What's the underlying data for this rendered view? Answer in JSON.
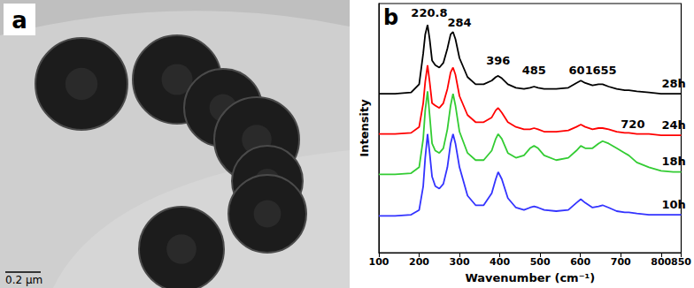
{
  "image_panel": {
    "label": "a",
    "scale_bar": "0.2 μm"
  },
  "chart_data": {
    "type": "line",
    "panel_label": "b",
    "xlabel": "Wavenumber (cm⁻¹)",
    "ylabel": "Intensity",
    "x": [
      100,
      140,
      180,
      200,
      210,
      215,
      220.8,
      226,
      232,
      240,
      250,
      260,
      270,
      278,
      284,
      290,
      300,
      320,
      340,
      360,
      380,
      390,
      396,
      405,
      420,
      440,
      460,
      475,
      485,
      495,
      510,
      540,
      570,
      590,
      601,
      612,
      630,
      645,
      655,
      670,
      690,
      710,
      720,
      740,
      770,
      800,
      830,
      850
    ],
    "series": [
      {
        "name": "28h",
        "color": "#000000",
        "values": [
          67,
          67,
          67.5,
          71,
          84,
          92,
          96,
          90,
          81,
          79,
          78,
          80,
          86,
          92,
          93,
          90,
          82,
          74,
          71,
          71,
          72.5,
          74,
          74.5,
          73.5,
          71,
          69.5,
          69,
          69.5,
          70,
          69.5,
          69,
          69,
          69.5,
          71.5,
          72.5,
          71.5,
          70.5,
          71,
          71,
          70,
          69,
          68.5,
          68.5,
          68,
          67.5,
          67,
          67,
          67
        ]
      },
      {
        "name": "24h",
        "color": "#ff0000",
        "values": [
          50,
          50,
          50.5,
          53,
          63,
          72,
          79,
          72,
          63,
          62,
          61,
          63,
          69,
          76,
          78,
          75,
          66,
          58,
          55,
          55,
          57,
          60,
          61,
          59,
          55,
          53,
          52,
          52,
          52.5,
          52,
          51,
          51,
          51.5,
          53,
          54,
          53,
          52,
          52.5,
          52.5,
          52,
          51,
          50.5,
          50.5,
          50,
          50,
          49.5,
          49.5,
          49.5
        ]
      },
      {
        "name": "18h",
        "color": "#33cc33",
        "values": [
          33,
          33,
          33.5,
          36,
          48,
          60,
          68,
          58,
          46,
          43,
          42,
          44,
          52,
          62,
          67,
          62,
          51,
          42,
          39,
          39,
          43,
          48,
          50,
          48,
          42,
          40,
          41,
          44,
          45,
          44,
          41,
          39,
          40,
          43,
          45,
          44,
          44,
          46,
          47,
          46,
          44,
          42,
          41,
          38,
          36,
          34.5,
          34,
          34
        ]
      },
      {
        "name": "10h",
        "color": "#3333ff",
        "values": [
          15.5,
          15.5,
          16,
          18,
          28,
          40,
          50,
          42,
          32,
          28,
          27,
          29,
          36,
          46,
          50,
          46,
          36,
          24,
          20,
          20,
          25,
          31,
          34,
          31,
          23,
          19,
          18,
          19,
          19.5,
          19,
          18,
          17.5,
          18,
          21,
          22.5,
          21,
          19,
          19.5,
          20,
          19,
          17.5,
          17,
          17,
          16.5,
          16,
          16,
          16,
          16
        ]
      }
    ],
    "annotations": [
      {
        "text": "220.8",
        "x": 225,
        "y": 101
      },
      {
        "text": "284",
        "x": 300,
        "y": 97
      },
      {
        "text": "396",
        "x": 396,
        "y": 81
      },
      {
        "text": "485",
        "x": 485,
        "y": 77
      },
      {
        "text": "601",
        "x": 601,
        "y": 77
      },
      {
        "text": "655",
        "x": 660,
        "y": 77
      },
      {
        "text": "720",
        "x": 730,
        "y": 54
      }
    ],
    "xlim": [
      100,
      850
    ],
    "xticks": [
      100,
      200,
      300,
      400,
      500,
      600,
      700,
      800
    ],
    "ylim": [
      0,
      105
    ],
    "tick_labels": "x",
    "grid": false
  }
}
